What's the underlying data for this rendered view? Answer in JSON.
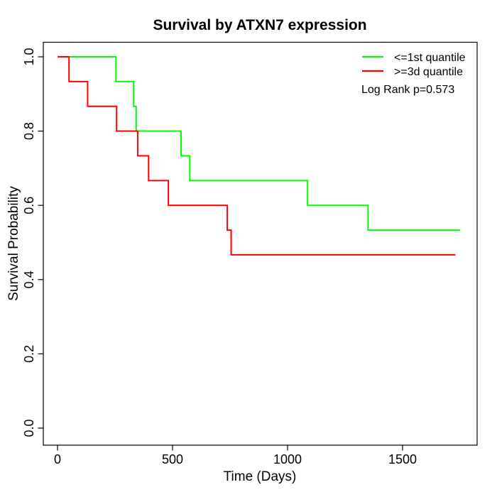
{
  "page": {
    "background_color": "#ffffff",
    "text_color": "#000000"
  },
  "chart_data": {
    "type": "line",
    "subtype": "kaplan-meier-step",
    "title": "Survival by ATXN7 expression",
    "xlabel": "Time (Days)",
    "ylabel": "Survival Probability",
    "xlim": [
      0,
      1750
    ],
    "ylim": [
      0.0,
      1.0
    ],
    "grid": false,
    "legend_position": "top-right",
    "annotation": "Log Rank p=0.573",
    "xticks": {
      "values": [
        0,
        500,
        1000,
        1500
      ],
      "labels": [
        "0",
        "500",
        "1000",
        "1500"
      ]
    },
    "yticks": {
      "values": [
        0.0,
        0.2,
        0.4,
        0.6,
        0.8,
        1.0
      ],
      "labels": [
        "0.0",
        "0.2",
        "0.4",
        "0.6",
        "0.8",
        "1.0"
      ]
    },
    "series": [
      {
        "name": "<=1st quantile",
        "color": "#00ff00",
        "start": [
          0,
          1.0
        ],
        "steps": [
          [
            254,
            0.9333
          ],
          [
            331,
            0.8667
          ],
          [
            342,
            0.8
          ],
          [
            537,
            0.7333
          ],
          [
            575,
            0.6667
          ],
          [
            1087,
            0.6
          ],
          [
            1350,
            0.5333
          ]
        ],
        "end_time": 1750
      },
      {
        "name": ">=3d quantile",
        "color": "#ff0000",
        "start": [
          0,
          1.0
        ],
        "steps": [
          [
            50,
            0.9333
          ],
          [
            131,
            0.8667
          ],
          [
            257,
            0.8
          ],
          [
            349,
            0.7333
          ],
          [
            396,
            0.6667
          ],
          [
            482,
            0.6
          ],
          [
            738,
            0.5333
          ],
          [
            755,
            0.4667
          ]
        ],
        "end_time": 1730
      }
    ]
  }
}
